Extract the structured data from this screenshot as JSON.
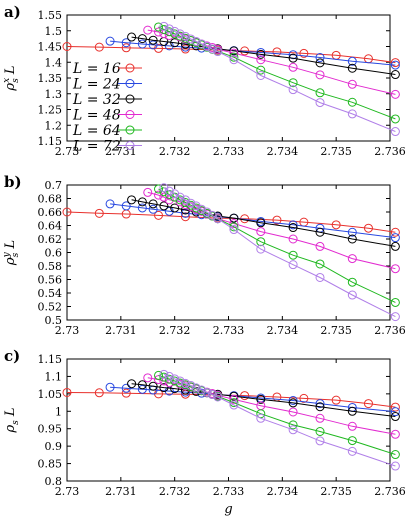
{
  "chart_data": [
    {
      "type": "line",
      "panel_label": "a)",
      "ylabel": "ρ_s^x L",
      "xlabel": "",
      "xlim": [
        2.73,
        2.736
      ],
      "ylim": [
        1.15,
        1.55
      ],
      "x_ticks": [
        "2.73",
        "2.731",
        "2.732",
        "2.733",
        "2.734",
        "2.735",
        "2.736"
      ],
      "y_ticks": [
        "1.15",
        "1.2",
        "1.25",
        "1.3",
        "1.35",
        "1.4",
        "1.45",
        "1.5",
        "1.55"
      ],
      "grid": false,
      "legend": "left",
      "series": [
        {
          "name": "L = 16",
          "color": "#e8302c",
          "x": [
            2.73,
            2.7306,
            2.7311,
            2.7317,
            2.7322,
            2.7328,
            2.7333,
            2.7339,
            2.7344,
            2.735,
            2.7356,
            2.7361
          ],
          "y": [
            1.45,
            1.448,
            1.446,
            1.444,
            1.442,
            1.439,
            1.436,
            1.433,
            1.428,
            1.422,
            1.411,
            1.399
          ]
        },
        {
          "name": "L = 24",
          "color": "#2848e0",
          "x": [
            2.7308,
            2.7311,
            2.7314,
            2.7316,
            2.7319,
            2.7322,
            2.7325,
            2.7328,
            2.7331,
            2.7336,
            2.7342,
            2.7347,
            2.7353,
            2.7361
          ],
          "y": [
            1.467,
            1.462,
            1.458,
            1.455,
            1.452,
            1.448,
            1.445,
            1.441,
            1.437,
            1.431,
            1.424,
            1.415,
            1.403,
            1.391
          ]
        },
        {
          "name": "L = 32",
          "color": "#000000",
          "x": [
            2.7312,
            2.7314,
            2.7316,
            2.7318,
            2.732,
            2.7322,
            2.7324,
            2.7326,
            2.7328,
            2.7331,
            2.7336,
            2.7342,
            2.7347,
            2.7353,
            2.7361
          ],
          "y": [
            1.48,
            1.475,
            1.47,
            1.466,
            1.462,
            1.457,
            1.452,
            1.448,
            1.443,
            1.436,
            1.425,
            1.413,
            1.398,
            1.381,
            1.361
          ]
        },
        {
          "name": "L = 48",
          "color": "#e22bd0",
          "x": [
            2.7315,
            2.7317,
            2.7318,
            2.7319,
            2.7321,
            2.7322,
            2.7323,
            2.7324,
            2.7325,
            2.7326,
            2.7327,
            2.7328,
            2.7331,
            2.7336,
            2.7342,
            2.7347,
            2.7353,
            2.7361
          ],
          "y": [
            1.502,
            1.496,
            1.491,
            1.485,
            1.48,
            1.474,
            1.469,
            1.463,
            1.458,
            1.452,
            1.447,
            1.441,
            1.429,
            1.408,
            1.384,
            1.36,
            1.33,
            1.298
          ]
        },
        {
          "name": "L = 64",
          "color": "#1fb81f",
          "x": [
            2.7317,
            2.7318,
            2.7319,
            2.732,
            2.7321,
            2.7322,
            2.7323,
            2.7324,
            2.7325,
            2.7326,
            2.7327,
            2.7328,
            2.7331,
            2.7336,
            2.7342,
            2.7347,
            2.7353,
            2.7361
          ],
          "y": [
            1.512,
            1.504,
            1.497,
            1.49,
            1.483,
            1.476,
            1.469,
            1.462,
            1.455,
            1.448,
            1.441,
            1.435,
            1.416,
            1.375,
            1.335,
            1.303,
            1.273,
            1.22
          ]
        },
        {
          "name": "L = 72",
          "color": "#b07fe8",
          "x": [
            2.7318,
            2.7319,
            2.732,
            2.7321,
            2.7322,
            2.7323,
            2.7324,
            2.7325,
            2.7326,
            2.7327,
            2.7328,
            2.7331,
            2.7336,
            2.7342,
            2.7347,
            2.7353,
            2.7361
          ],
          "y": [
            1.514,
            1.506,
            1.498,
            1.49,
            1.482,
            1.474,
            1.466,
            1.458,
            1.45,
            1.442,
            1.434,
            1.408,
            1.358,
            1.313,
            1.272,
            1.236,
            1.18
          ]
        }
      ]
    },
    {
      "type": "line",
      "panel_label": "b)",
      "ylabel": "ρ_s^y L",
      "xlabel": "",
      "xlim": [
        2.73,
        2.736
      ],
      "ylim": [
        0.5,
        0.7
      ],
      "x_ticks": [
        "2.73",
        "2.731",
        "2.732",
        "2.733",
        "2.734",
        "2.735",
        "2.736"
      ],
      "y_ticks": [
        "0.5",
        "0.52",
        "0.54",
        "0.56",
        "0.58",
        "0.6",
        "0.62",
        "0.64",
        "0.66",
        "0.68",
        "0.7"
      ],
      "grid": false,
      "legend": "none",
      "series": [
        {
          "name": "L = 16",
          "color": "#e8302c",
          "x": [
            2.73,
            2.7306,
            2.7311,
            2.7317,
            2.7322,
            2.7328,
            2.7333,
            2.7339,
            2.7344,
            2.735,
            2.7356,
            2.7361
          ],
          "y": [
            0.66,
            0.658,
            0.657,
            0.655,
            0.653,
            0.651,
            0.65,
            0.648,
            0.645,
            0.641,
            0.636,
            0.63
          ]
        },
        {
          "name": "L = 24",
          "color": "#2848e0",
          "x": [
            2.7308,
            2.7311,
            2.7314,
            2.7316,
            2.7319,
            2.7322,
            2.7325,
            2.7328,
            2.7331,
            2.7336,
            2.7342,
            2.7347,
            2.7353,
            2.7361
          ],
          "y": [
            0.672,
            0.669,
            0.666,
            0.664,
            0.661,
            0.658,
            0.656,
            0.653,
            0.651,
            0.646,
            0.641,
            0.636,
            0.63,
            0.622
          ]
        },
        {
          "name": "L = 32",
          "color": "#000000",
          "x": [
            2.7312,
            2.7314,
            2.7316,
            2.7318,
            2.732,
            2.7322,
            2.7324,
            2.7326,
            2.7328,
            2.7331,
            2.7336,
            2.7342,
            2.7347,
            2.7353,
            2.7361
          ],
          "y": [
            0.678,
            0.675,
            0.672,
            0.669,
            0.666,
            0.663,
            0.66,
            0.657,
            0.654,
            0.651,
            0.644,
            0.637,
            0.63,
            0.62,
            0.609
          ]
        },
        {
          "name": "L = 48",
          "color": "#e22bd0",
          "x": [
            2.7315,
            2.7317,
            2.7318,
            2.7319,
            2.7321,
            2.7322,
            2.7323,
            2.7324,
            2.7325,
            2.7326,
            2.7327,
            2.7328,
            2.7331,
            2.7336,
            2.7342,
            2.7347,
            2.7353,
            2.7361
          ],
          "y": [
            0.689,
            0.685,
            0.682,
            0.678,
            0.675,
            0.671,
            0.668,
            0.664,
            0.661,
            0.657,
            0.654,
            0.65,
            0.643,
            0.631,
            0.62,
            0.609,
            0.591,
            0.576
          ]
        },
        {
          "name": "L = 64",
          "color": "#1fb81f",
          "x": [
            2.7317,
            2.7318,
            2.7319,
            2.732,
            2.7321,
            2.7322,
            2.7323,
            2.7324,
            2.7325,
            2.7326,
            2.7327,
            2.7328,
            2.7331,
            2.7336,
            2.7342,
            2.7347,
            2.7353,
            2.7361
          ],
          "y": [
            0.694,
            0.69,
            0.686,
            0.682,
            0.678,
            0.674,
            0.67,
            0.666,
            0.662,
            0.658,
            0.654,
            0.65,
            0.638,
            0.616,
            0.596,
            0.583,
            0.556,
            0.526
          ]
        },
        {
          "name": "L = 72",
          "color": "#b07fe8",
          "x": [
            2.7318,
            2.7319,
            2.732,
            2.7321,
            2.7322,
            2.7323,
            2.7324,
            2.7325,
            2.7326,
            2.7327,
            2.7328,
            2.7331,
            2.7336,
            2.7342,
            2.7347,
            2.7353,
            2.7361
          ],
          "y": [
            0.696,
            0.691,
            0.687,
            0.682,
            0.678,
            0.673,
            0.669,
            0.664,
            0.66,
            0.655,
            0.65,
            0.634,
            0.605,
            0.582,
            0.563,
            0.537,
            0.505
          ]
        }
      ]
    },
    {
      "type": "line",
      "panel_label": "c)",
      "ylabel": "ρ_s L",
      "xlabel": "g",
      "xlim": [
        2.73,
        2.736
      ],
      "ylim": [
        0.8,
        1.15
      ],
      "x_ticks": [
        "2.73",
        "2.731",
        "2.732",
        "2.733",
        "2.734",
        "2.735",
        "2.736"
      ],
      "y_ticks": [
        "0.8",
        "0.85",
        "0.9",
        "0.95",
        "1",
        "1.05",
        "1.1",
        "1.15"
      ],
      "grid": false,
      "legend": "none",
      "series": [
        {
          "name": "L = 16",
          "color": "#e8302c",
          "x": [
            2.73,
            2.7306,
            2.7311,
            2.7317,
            2.7322,
            2.7328,
            2.7333,
            2.7339,
            2.7344,
            2.735,
            2.7356,
            2.7361
          ],
          "y": [
            1.054,
            1.053,
            1.052,
            1.05,
            1.049,
            1.047,
            1.045,
            1.041,
            1.037,
            1.032,
            1.022,
            1.012
          ]
        },
        {
          "name": "L = 24",
          "color": "#2848e0",
          "x": [
            2.7308,
            2.7311,
            2.7314,
            2.7316,
            2.7319,
            2.7322,
            2.7325,
            2.7328,
            2.7331,
            2.7336,
            2.7342,
            2.7347,
            2.7353,
            2.7361
          ],
          "y": [
            1.069,
            1.066,
            1.063,
            1.061,
            1.058,
            1.055,
            1.052,
            1.048,
            1.045,
            1.038,
            1.031,
            1.022,
            1.011,
            0.999
          ]
        },
        {
          "name": "L = 32",
          "color": "#000000",
          "x": [
            2.7312,
            2.7314,
            2.7316,
            2.7318,
            2.732,
            2.7322,
            2.7324,
            2.7326,
            2.7328,
            2.7331,
            2.7336,
            2.7342,
            2.7347,
            2.7353,
            2.7361
          ],
          "y": [
            1.079,
            1.076,
            1.072,
            1.068,
            1.065,
            1.061,
            1.057,
            1.053,
            1.049,
            1.043,
            1.034,
            1.024,
            1.013,
            1.0,
            0.985
          ]
        },
        {
          "name": "L = 48",
          "color": "#e22bd0",
          "x": [
            2.7315,
            2.7317,
            2.7318,
            2.7319,
            2.7321,
            2.7322,
            2.7323,
            2.7324,
            2.7325,
            2.7326,
            2.7327,
            2.7328,
            2.7331,
            2.7336,
            2.7342,
            2.7347,
            2.7353,
            2.7361
          ],
          "y": [
            1.096,
            1.091,
            1.087,
            1.082,
            1.078,
            1.073,
            1.069,
            1.064,
            1.06,
            1.055,
            1.051,
            1.046,
            1.034,
            1.016,
            0.998,
            0.98,
            0.957,
            0.934
          ]
        },
        {
          "name": "L = 64",
          "color": "#1fb81f",
          "x": [
            2.7317,
            2.7318,
            2.7319,
            2.732,
            2.7321,
            2.7322,
            2.7323,
            2.7324,
            2.7325,
            2.7326,
            2.7327,
            2.7328,
            2.7331,
            2.7336,
            2.7342,
            2.7347,
            2.7353,
            2.7361
          ],
          "y": [
            1.103,
            1.098,
            1.092,
            1.087,
            1.081,
            1.076,
            1.07,
            1.065,
            1.059,
            1.054,
            1.048,
            1.043,
            1.025,
            0.993,
            0.961,
            0.942,
            0.916,
            0.876
          ]
        },
        {
          "name": "L = 72",
          "color": "#b07fe8",
          "x": [
            2.7318,
            2.7319,
            2.732,
            2.7321,
            2.7322,
            2.7323,
            2.7324,
            2.7325,
            2.7326,
            2.7327,
            2.7328,
            2.7331,
            2.7336,
            2.7342,
            2.7347,
            2.7353,
            2.7361
          ],
          "y": [
            1.106,
            1.1,
            1.093,
            1.087,
            1.08,
            1.074,
            1.067,
            1.061,
            1.054,
            1.048,
            1.041,
            1.018,
            0.98,
            0.947,
            0.915,
            0.885,
            0.843
          ]
        }
      ]
    }
  ]
}
